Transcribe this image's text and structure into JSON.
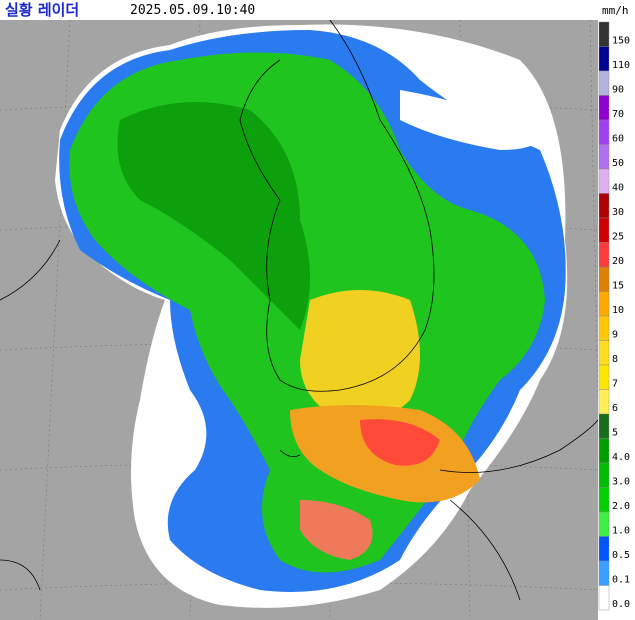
{
  "header": {
    "title": "실황 레이더",
    "timestamp": "2025.05.09.10:40",
    "unit": "mm/h"
  },
  "legend": {
    "items": [
      {
        "label": "150",
        "color": "#333333"
      },
      {
        "label": "110",
        "color": "#000390"
      },
      {
        "label": "90",
        "color": "#b3b4de"
      },
      {
        "label": "70",
        "color": "#9000d0"
      },
      {
        "label": "60",
        "color": "#a040f0"
      },
      {
        "label": "50",
        "color": "#b070f0"
      },
      {
        "label": "40",
        "color": "#dfb0f0"
      },
      {
        "label": "30",
        "color": "#ad0000"
      },
      {
        "label": "25",
        "color": "#d20000"
      },
      {
        "label": "20",
        "color": "#ff3c3c"
      },
      {
        "label": "15",
        "color": "#e08000"
      },
      {
        "label": "10",
        "color": "#ffaa00"
      },
      {
        "label": "9",
        "color": "#ffc800"
      },
      {
        "label": "8",
        "color": "#ffdc20"
      },
      {
        "label": "7",
        "color": "#ffe600"
      },
      {
        "label": "6",
        "color": "#fff058"
      },
      {
        "label": "5",
        "color": "#1a6e1a"
      },
      {
        "label": "4.0",
        "color": "#00a000"
      },
      {
        "label": "3.0",
        "color": "#00be00"
      },
      {
        "label": "2.0",
        "color": "#00d000"
      },
      {
        "label": "1.0",
        "color": "#40f040"
      },
      {
        "label": "0.5",
        "color": "#0054ff"
      },
      {
        "label": "0.1",
        "color": "#3aa0ff"
      },
      {
        "label": "0.0",
        "color": "#ffffff"
      }
    ]
  }
}
